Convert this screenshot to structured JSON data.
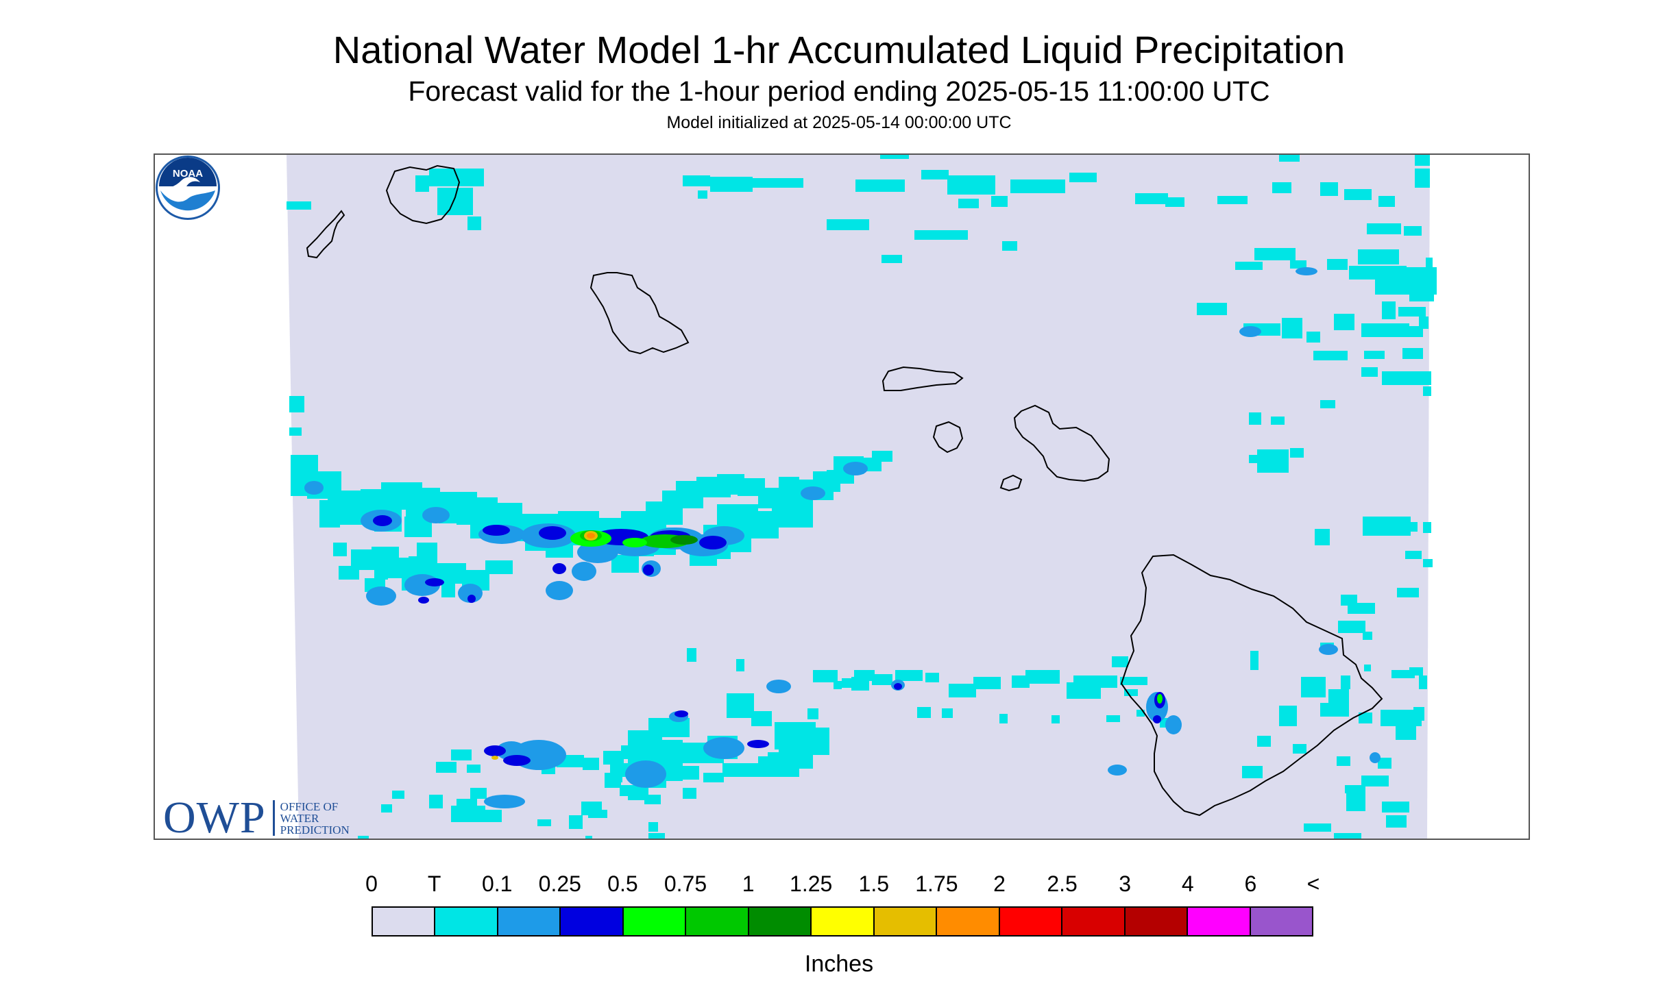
{
  "header": {
    "title": "National Water Model 1-hr Accumulated Liquid Precipitation",
    "subtitle": "Forecast valid for the 1-hour period ending 2025-05-15 11:00:00 UTC",
    "init": "Model initialized at 2025-05-14 00:00:00 UTC"
  },
  "map": {
    "region": "Hawaiian Islands",
    "background_color": "#dcdcee",
    "islands": [
      "Kauai",
      "Niihau",
      "Oahu",
      "Molokai",
      "Lanai",
      "Maui",
      "Kahoolawe",
      "Hawaii"
    ]
  },
  "logos": {
    "owp": {
      "mark": "OWP",
      "line1": "OFFICE OF",
      "line2": "WATER",
      "line3": "PREDICTION"
    },
    "noaa": {
      "text": "NOAA",
      "icon": "noaa-logo-icon"
    }
  },
  "legend": {
    "labels": [
      "0",
      "T",
      "0.1",
      "0.25",
      "0.5",
      "0.75",
      "1",
      "1.25",
      "1.5",
      "1.75",
      "2",
      "2.5",
      "3",
      "4",
      "6",
      "<"
    ],
    "colors": [
      "#dcdcee",
      "#00e5e5",
      "#1e9be8",
      "#0000e0",
      "#00ff00",
      "#00c800",
      "#008c00",
      "#ffff00",
      "#e5be00",
      "#ff8c00",
      "#ff0000",
      "#d80000",
      "#b40000",
      "#ff00ff",
      "#9955cc"
    ],
    "units": "Inches"
  }
}
